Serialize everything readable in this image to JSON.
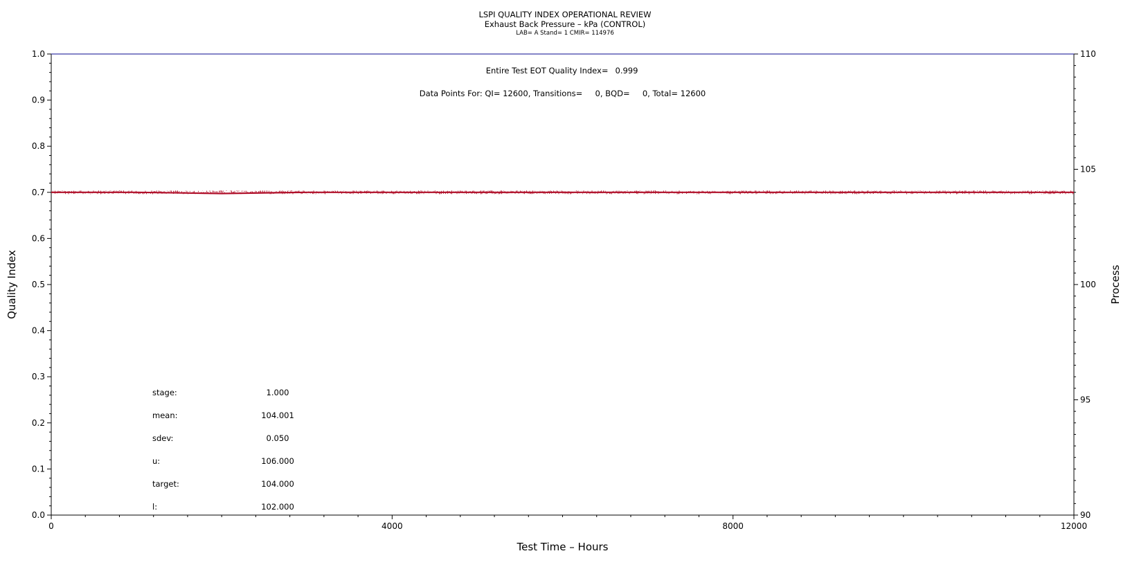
{
  "header": {
    "title": "LSPI QUALITY INDEX OPERATIONAL REVIEW",
    "subtitle": "Exhaust Back Pressure – kPa (CONTROL)",
    "meta": "LAB= A Stand= 1 CMIR= 114976"
  },
  "annotations": {
    "eot_label": "Entire Test EOT Quality Index=",
    "eot_value": "0.999",
    "data_points": "Data Points For: QI= 12600, Transitions=     0, BQD=     0, Total= 12600"
  },
  "stats": [
    {
      "label": "stage:",
      "value": "1.000"
    },
    {
      "label": "mean:",
      "value": "104.001"
    },
    {
      "label": "sdev:",
      "value": "0.050"
    },
    {
      "label": "u:",
      "value": "106.000"
    },
    {
      "label": "target:",
      "value": "104.000"
    },
    {
      "label": "l:",
      "value": "102.000"
    }
  ],
  "colors": {
    "process": "#b0102a",
    "quality_index": "#3a3aa8",
    "axis": "#000000"
  },
  "chart_data": {
    "type": "line",
    "xlabel": "Test Time – Hours",
    "ylabel_left": "Quality Index",
    "ylabel_right": "Process",
    "xlim": [
      0,
      12000
    ],
    "ylim_left": [
      0,
      1
    ],
    "ylim_right": [
      90,
      110
    ],
    "x_ticks": [
      "0",
      "4000",
      "8000",
      "12000"
    ],
    "y_left_ticks": [
      "0.0",
      "0.1",
      "0.2",
      "0.3",
      "0.4",
      "0.5",
      "0.6",
      "0.7",
      "0.8",
      "0.9",
      "1.0"
    ],
    "y_right_ticks": [
      "90",
      "95",
      "100",
      "105",
      "110"
    ],
    "series": [
      {
        "name": "Quality Index",
        "axis": "left",
        "x": [
          0,
          12000
        ],
        "y": [
          1.0,
          1.0
        ]
      },
      {
        "name": "Process",
        "axis": "right",
        "x": [
          0,
          1000,
          2000,
          3000,
          4000,
          5000,
          6000,
          7000,
          8000,
          9000,
          10000,
          11000,
          12000
        ],
        "y": [
          104.0,
          104.0,
          103.95,
          104.0,
          104.0,
          104.0,
          104.0,
          104.0,
          104.0,
          104.0,
          104.0,
          104.0,
          104.0
        ]
      }
    ],
    "grid": false
  }
}
